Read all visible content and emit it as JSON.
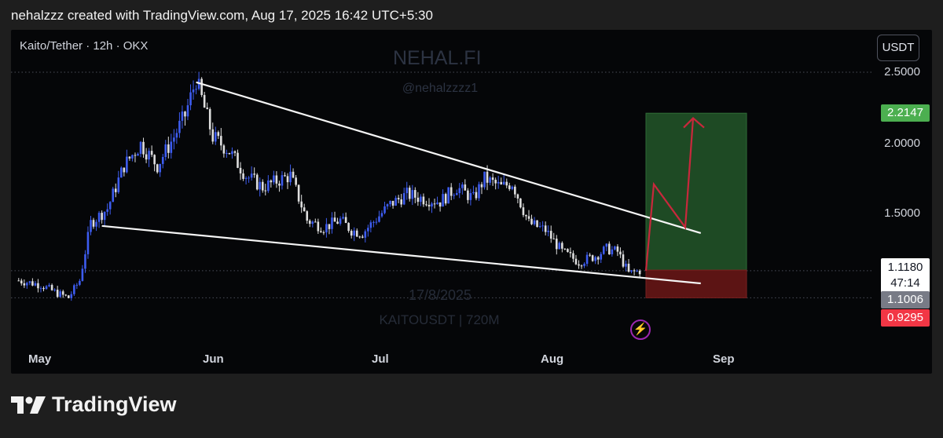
{
  "header": {
    "text": "nehalzzz created with TradingView.com, Aug 17, 2025 16:42 UTC+5:30"
  },
  "chart": {
    "symbol_label": "Kaito/Tether · 12h · OKX",
    "currency_button": "USDT",
    "watermark_brand": "NEHAL.FI",
    "watermark_handle": "@nehalzzzz1",
    "watermark_date": "17/8/2025",
    "watermark_ticker": "KAITOUSDT | 720M",
    "price_axis": [
      "2.5000",
      "2.0000",
      "1.5000"
    ],
    "time_axis": [
      "May",
      "Jun",
      "Jul",
      "Aug",
      "Sep"
    ],
    "tags": {
      "target": "2.2147",
      "current_price": "1.1180",
      "countdown": "47:14",
      "entry": "1.1006",
      "stop": "0.9295"
    },
    "colors": {
      "background": "#050608",
      "candle_up": "#3d5cf0",
      "candle_down": "#dedede",
      "profit_zone": "#1e4a24",
      "loss_zone": "#5c1414",
      "target_tag": "#4caf50",
      "stop_tag": "#f23645",
      "projection_arrow": "#c8283c"
    }
  },
  "chart_data": {
    "type": "candlestick",
    "title": "Kaito/Tether · 12h · OKX",
    "x_axis_ticks": [
      "May",
      "Jun",
      "Jul",
      "Aug",
      "Sep"
    ],
    "y_axis_ticks": [
      2.5,
      2.0,
      1.5
    ],
    "ylim": [
      0.8,
      2.6
    ],
    "x_range": [
      "2025-04-27",
      "2025-09-22"
    ],
    "grid": false,
    "close_path": [
      [
        "2025-04-27",
        1.05
      ],
      [
        "2025-05-01",
        1.02
      ],
      [
        "2025-05-04",
        0.96
      ],
      [
        "2025-05-06",
        0.93
      ],
      [
        "2025-05-08",
        1.05
      ],
      [
        "2025-05-10",
        1.45
      ],
      [
        "2025-05-13",
        1.55
      ],
      [
        "2025-05-16",
        1.85
      ],
      [
        "2025-05-19",
        2.0
      ],
      [
        "2025-05-22",
        1.85
      ],
      [
        "2025-05-25",
        2.05
      ],
      [
        "2025-05-27",
        2.2
      ],
      [
        "2025-05-29",
        2.45
      ],
      [
        "2025-06-01",
        2.05
      ],
      [
        "2025-06-04",
        1.95
      ],
      [
        "2025-06-07",
        1.78
      ],
      [
        "2025-06-10",
        1.7
      ],
      [
        "2025-06-13",
        1.75
      ],
      [
        "2025-06-15",
        1.78
      ],
      [
        "2025-06-18",
        1.47
      ],
      [
        "2025-06-21",
        1.42
      ],
      [
        "2025-06-24",
        1.47
      ],
      [
        "2025-06-26",
        1.4
      ],
      [
        "2025-06-28",
        1.38
      ],
      [
        "2025-07-01",
        1.5
      ],
      [
        "2025-07-03",
        1.58
      ],
      [
        "2025-07-06",
        1.65
      ],
      [
        "2025-07-09",
        1.62
      ],
      [
        "2025-07-12",
        1.6
      ],
      [
        "2025-07-15",
        1.7
      ],
      [
        "2025-07-18",
        1.62
      ],
      [
        "2025-07-20",
        1.76
      ],
      [
        "2025-07-23",
        1.7
      ],
      [
        "2025-07-25",
        1.73
      ],
      [
        "2025-07-28",
        1.45
      ],
      [
        "2025-07-31",
        1.4
      ],
      [
        "2025-08-03",
        1.25
      ],
      [
        "2025-08-06",
        1.18
      ],
      [
        "2025-08-09",
        1.22
      ],
      [
        "2025-08-11",
        1.27
      ],
      [
        "2025-08-13",
        1.25
      ],
      [
        "2025-08-15",
        1.1
      ],
      [
        "2025-08-17",
        1.118
      ]
    ],
    "annotations": {
      "upper_trendline": [
        [
          "2025-05-29",
          2.43
        ],
        [
          "2025-08-28",
          1.38
        ]
      ],
      "lower_trendline": [
        [
          "2025-05-12",
          1.43
        ],
        [
          "2025-08-28",
          1.03
        ]
      ],
      "long_position": {
        "entry": 1.1006,
        "target": 2.2147,
        "stop": 0.9295
      },
      "projection_path": [
        1.118,
        1.72,
        1.42,
        2.18
      ]
    }
  }
}
